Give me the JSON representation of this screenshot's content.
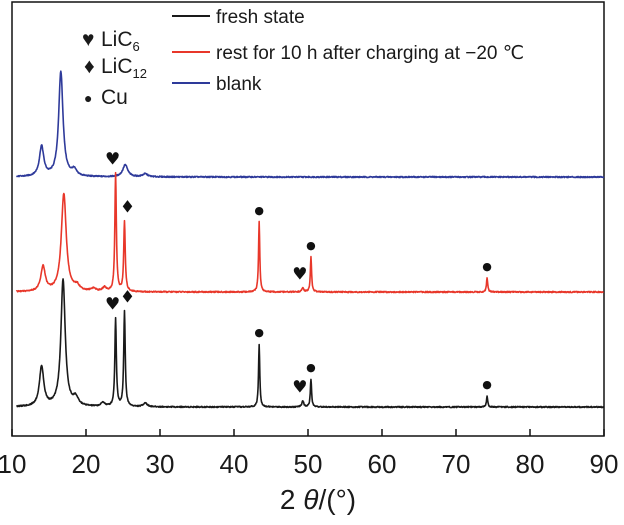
{
  "chart_data": {
    "type": "line",
    "title": "",
    "xlabel": {
      "prefix": "2 ",
      "symbol": "θ",
      "suffix": "/(°)"
    },
    "ylabel": "",
    "xlim": [
      10,
      90
    ],
    "xticks": [
      "10",
      "20",
      "30",
      "40",
      "50",
      "60",
      "70",
      "80",
      "90"
    ],
    "legend": [
      {
        "label": "fresh state",
        "color": "#1a1a1a"
      },
      {
        "label": "rest for 10 h after charging at −20 ℃",
        "color": "#e8372a"
      },
      {
        "label": "blank",
        "color": "#2e3a9a"
      }
    ],
    "phase_markers": [
      {
        "symbol": "♥",
        "name": "LiC",
        "sub": "6"
      },
      {
        "symbol": "♦",
        "name": "LiC",
        "sub": "12"
      },
      {
        "symbol": "●",
        "name": "Cu",
        "sub": ""
      }
    ],
    "series": [
      {
        "name": "blank",
        "color": "#2e3a9a",
        "baseline_y": 2.3,
        "peaks": [
          {
            "x": 14.0,
            "h": 0.3,
            "w": 0.35
          },
          {
            "x": 16.6,
            "h": 1.05,
            "w": 0.35
          },
          {
            "x": 18.4,
            "h": 0.06,
            "w": 0.4
          },
          {
            "x": 25.3,
            "h": 0.12,
            "w": 0.4
          },
          {
            "x": 28.0,
            "h": 0.03,
            "w": 0.4
          }
        ],
        "markers": []
      },
      {
        "name": "rest for 10 h after charging at −20 ℃",
        "color": "#e8372a",
        "baseline_y": 1.15,
        "peaks": [
          {
            "x": 14.2,
            "h": 0.25,
            "w": 0.35
          },
          {
            "x": 17.0,
            "h": 0.98,
            "w": 0.4
          },
          {
            "x": 18.8,
            "h": 0.05,
            "w": 0.4
          },
          {
            "x": 21.0,
            "h": 0.03,
            "w": 0.4
          },
          {
            "x": 22.5,
            "h": 0.04,
            "w": 0.3
          },
          {
            "x": 24.0,
            "h": 1.18,
            "w": 0.12
          },
          {
            "x": 25.2,
            "h": 0.7,
            "w": 0.12
          },
          {
            "x": 43.4,
            "h": 0.7,
            "w": 0.1
          },
          {
            "x": 49.3,
            "h": 0.04,
            "w": 0.15
          },
          {
            "x": 50.4,
            "h": 0.35,
            "w": 0.1
          },
          {
            "x": 74.2,
            "h": 0.14,
            "w": 0.1
          }
        ],
        "markers": [
          {
            "x": 24.0,
            "type": "♥"
          },
          {
            "x": 25.2,
            "type": "♦"
          },
          {
            "x": 43.4,
            "type": "●"
          },
          {
            "x": 49.3,
            "type": "♥"
          },
          {
            "x": 50.4,
            "type": "●"
          },
          {
            "x": 74.2,
            "type": "●"
          }
        ]
      },
      {
        "name": "fresh state",
        "color": "#1a1a1a",
        "baseline_y": 0.0,
        "peaks": [
          {
            "x": 14.0,
            "h": 0.4,
            "w": 0.35
          },
          {
            "x": 16.9,
            "h": 1.27,
            "w": 0.35
          },
          {
            "x": 18.6,
            "h": 0.08,
            "w": 0.4
          },
          {
            "x": 22.3,
            "h": 0.04,
            "w": 0.3
          },
          {
            "x": 24.0,
            "h": 0.88,
            "w": 0.12
          },
          {
            "x": 25.2,
            "h": 0.95,
            "w": 0.12
          },
          {
            "x": 28.0,
            "h": 0.04,
            "w": 0.3
          },
          {
            "x": 43.4,
            "h": 0.63,
            "w": 0.1
          },
          {
            "x": 49.3,
            "h": 0.06,
            "w": 0.15
          },
          {
            "x": 50.4,
            "h": 0.28,
            "w": 0.1
          },
          {
            "x": 74.2,
            "h": 0.11,
            "w": 0.1
          }
        ],
        "markers": [
          {
            "x": 24.0,
            "type": "♥"
          },
          {
            "x": 25.2,
            "type": "♦"
          },
          {
            "x": 43.4,
            "type": "●"
          },
          {
            "x": 49.3,
            "type": "♥"
          },
          {
            "x": 50.4,
            "type": "●"
          },
          {
            "x": 74.2,
            "type": "●"
          }
        ]
      }
    ]
  }
}
